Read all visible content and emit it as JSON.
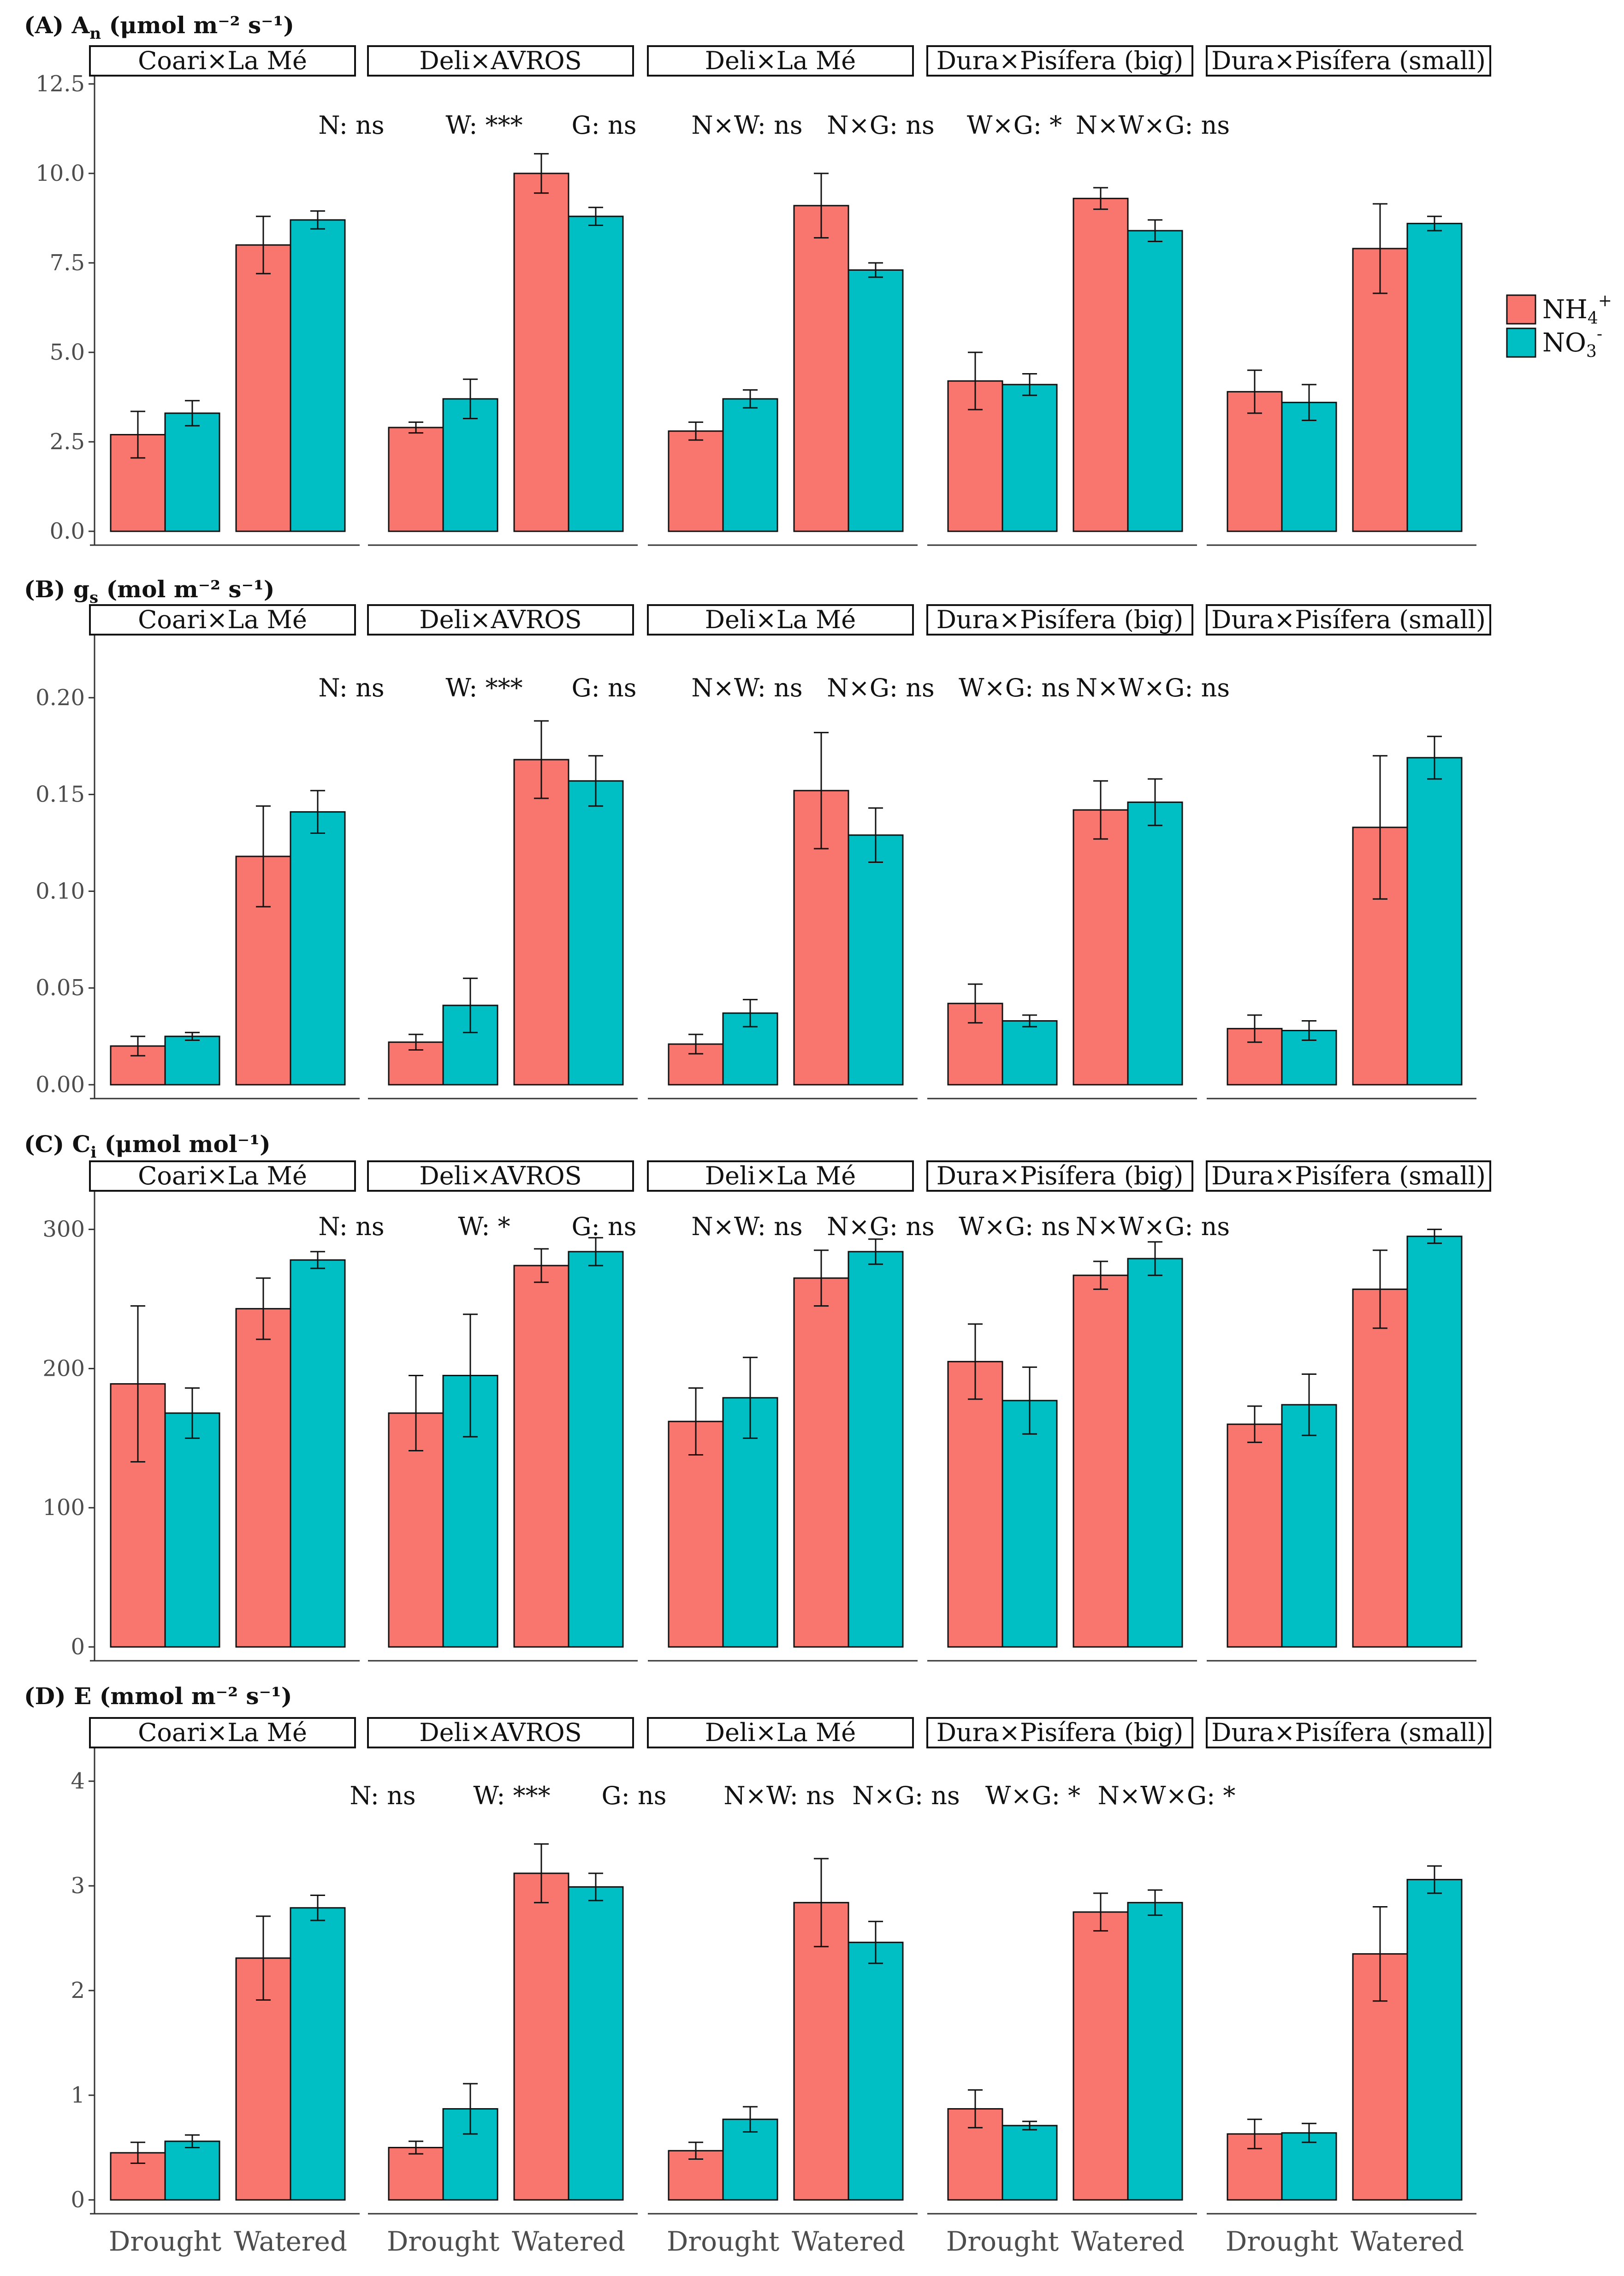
{
  "chart_data": {
    "type": "bar",
    "facets": [
      "Coari×La Mé",
      "Deli×AVROS",
      "Deli×La Mé",
      "Dura×Pisífera (big)",
      "Dura×Pisífera (small)"
    ],
    "categories": [
      "Drought",
      "Watered"
    ],
    "legend": {
      "position": "right",
      "entries": [
        {
          "name": "NH4+",
          "label_main": "NH",
          "label_sub": "4",
          "label_sup": "+",
          "color": "#F8766D"
        },
        {
          "name": "NO3-",
          "label_main": "NO",
          "label_sub": "3",
          "label_sup": "-",
          "color": "#00BFC4"
        }
      ]
    },
    "panels": [
      {
        "title": "(A)  A",
        "title_sub": "n",
        "title_rest": " (μmol m⁻² s⁻¹)",
        "ylim": [
          0,
          12.5
        ],
        "yticks": [
          0,
          2.5,
          5,
          7.5,
          10,
          12.5
        ],
        "ytick_labels": [
          "0.0",
          "2.5",
          "5.0",
          "7.5",
          "10.0",
          "12.5"
        ],
        "annotations": [
          "N: ns",
          "W: ***",
          "G: ns",
          "N×W: ns",
          "N×G: ns",
          "W×G: *",
          "N×W×G: ns"
        ],
        "series": [
          {
            "name": "NH4+",
            "values": [
              [
                2.7,
                8.0
              ],
              [
                2.9,
                10.0
              ],
              [
                2.8,
                9.1
              ],
              [
                4.2,
                9.3
              ],
              [
                3.9,
                7.9
              ]
            ],
            "errors": [
              [
                0.65,
                0.8
              ],
              [
                0.15,
                0.55
              ],
              [
                0.25,
                0.9
              ],
              [
                0.8,
                0.3
              ],
              [
                0.6,
                1.25
              ]
            ]
          },
          {
            "name": "NO3-",
            "values": [
              [
                3.3,
                8.7
              ],
              [
                3.7,
                8.8
              ],
              [
                3.7,
                7.3
              ],
              [
                4.1,
                8.4
              ],
              [
                3.6,
                8.6
              ]
            ],
            "errors": [
              [
                0.35,
                0.25
              ],
              [
                0.55,
                0.25
              ],
              [
                0.25,
                0.2
              ],
              [
                0.3,
                0.3
              ],
              [
                0.5,
                0.2
              ]
            ]
          }
        ]
      },
      {
        "title": "(B)  g",
        "title_sub": "s",
        "title_rest": " (mol m⁻² s⁻¹)",
        "ylim": [
          0,
          0.24
        ],
        "yticks": [
          0,
          0.05,
          0.1,
          0.15,
          0.2
        ],
        "ytick_labels": [
          "0.00",
          "0.05",
          "0.10",
          "0.15",
          "0.20"
        ],
        "annotations": [
          "N: ns",
          "W: ***",
          "G: ns",
          "N×W: ns",
          "N×G: ns",
          "W×G: ns",
          "N×W×G: ns"
        ],
        "series": [
          {
            "name": "NH4+",
            "values": [
              [
                0.02,
                0.118
              ],
              [
                0.022,
                0.168
              ],
              [
                0.021,
                0.152
              ],
              [
                0.042,
                0.142
              ],
              [
                0.029,
                0.133
              ]
            ],
            "errors": [
              [
                0.005,
                0.026
              ],
              [
                0.004,
                0.02
              ],
              [
                0.005,
                0.03
              ],
              [
                0.01,
                0.015
              ],
              [
                0.007,
                0.037
              ]
            ]
          },
          {
            "name": "NO3-",
            "values": [
              [
                0.025,
                0.141
              ],
              [
                0.041,
                0.157
              ],
              [
                0.037,
                0.129
              ],
              [
                0.033,
                0.146
              ],
              [
                0.028,
                0.169
              ]
            ],
            "errors": [
              [
                0.002,
                0.011
              ],
              [
                0.014,
                0.013
              ],
              [
                0.007,
                0.014
              ],
              [
                0.003,
                0.012
              ],
              [
                0.005,
                0.011
              ]
            ]
          }
        ]
      },
      {
        "title": "(C)  C",
        "title_sub": "i",
        "title_rest": " (μmol mol⁻¹)",
        "ylim": [
          0,
          335
        ],
        "yticks": [
          0,
          100,
          200,
          300
        ],
        "ytick_labels": [
          "0",
          "100",
          "200",
          "300"
        ],
        "annotations": [
          "N: ns",
          "W: *",
          "G: ns",
          "N×W: ns",
          "N×G: ns",
          "W×G: ns",
          "N×W×G: ns"
        ],
        "series": [
          {
            "name": "NH4+",
            "values": [
              [
                189,
                243
              ],
              [
                168,
                274
              ],
              [
                162,
                265
              ],
              [
                205,
                267
              ],
              [
                160,
                257
              ]
            ],
            "errors": [
              [
                56,
                22
              ],
              [
                27,
                12
              ],
              [
                24,
                20
              ],
              [
                27,
                10
              ],
              [
                13,
                28
              ]
            ]
          },
          {
            "name": "NO3-",
            "values": [
              [
                168,
                278
              ],
              [
                195,
                284
              ],
              [
                179,
                284
              ],
              [
                177,
                279
              ],
              [
                174,
                295
              ]
            ],
            "errors": [
              [
                18,
                6
              ],
              [
                44,
                10
              ],
              [
                29,
                9
              ],
              [
                24,
                12
              ],
              [
                22,
                5
              ]
            ]
          }
        ]
      },
      {
        "title": "(D)  E (mmol m⁻² s⁻¹)",
        "title_sub": "",
        "title_rest": "",
        "ylim": [
          0,
          4.3
        ],
        "yticks": [
          0,
          1,
          2,
          3,
          4
        ],
        "ytick_labels": [
          "0",
          "1",
          "2",
          "3",
          "4"
        ],
        "annotations": [
          "N: ns",
          "W: ***",
          "G: ns",
          "N×W: ns",
          "N×G: ns",
          "W×G: *",
          "N×W×G: *"
        ],
        "series": [
          {
            "name": "NH4+",
            "values": [
              [
                0.45,
                2.31
              ],
              [
                0.5,
                3.12
              ],
              [
                0.47,
                2.84
              ],
              [
                0.87,
                2.75
              ],
              [
                0.63,
                2.35
              ]
            ],
            "errors": [
              [
                0.1,
                0.4
              ],
              [
                0.06,
                0.28
              ],
              [
                0.08,
                0.42
              ],
              [
                0.18,
                0.18
              ],
              [
                0.14,
                0.45
              ]
            ]
          },
          {
            "name": "NO3-",
            "values": [
              [
                0.56,
                2.79
              ],
              [
                0.87,
                2.99
              ],
              [
                0.77,
                2.46
              ],
              [
                0.71,
                2.84
              ],
              [
                0.64,
                3.06
              ]
            ],
            "errors": [
              [
                0.06,
                0.12
              ],
              [
                0.24,
                0.13
              ],
              [
                0.12,
                0.2
              ],
              [
                0.04,
                0.12
              ],
              [
                0.09,
                0.13
              ]
            ]
          }
        ]
      }
    ]
  }
}
